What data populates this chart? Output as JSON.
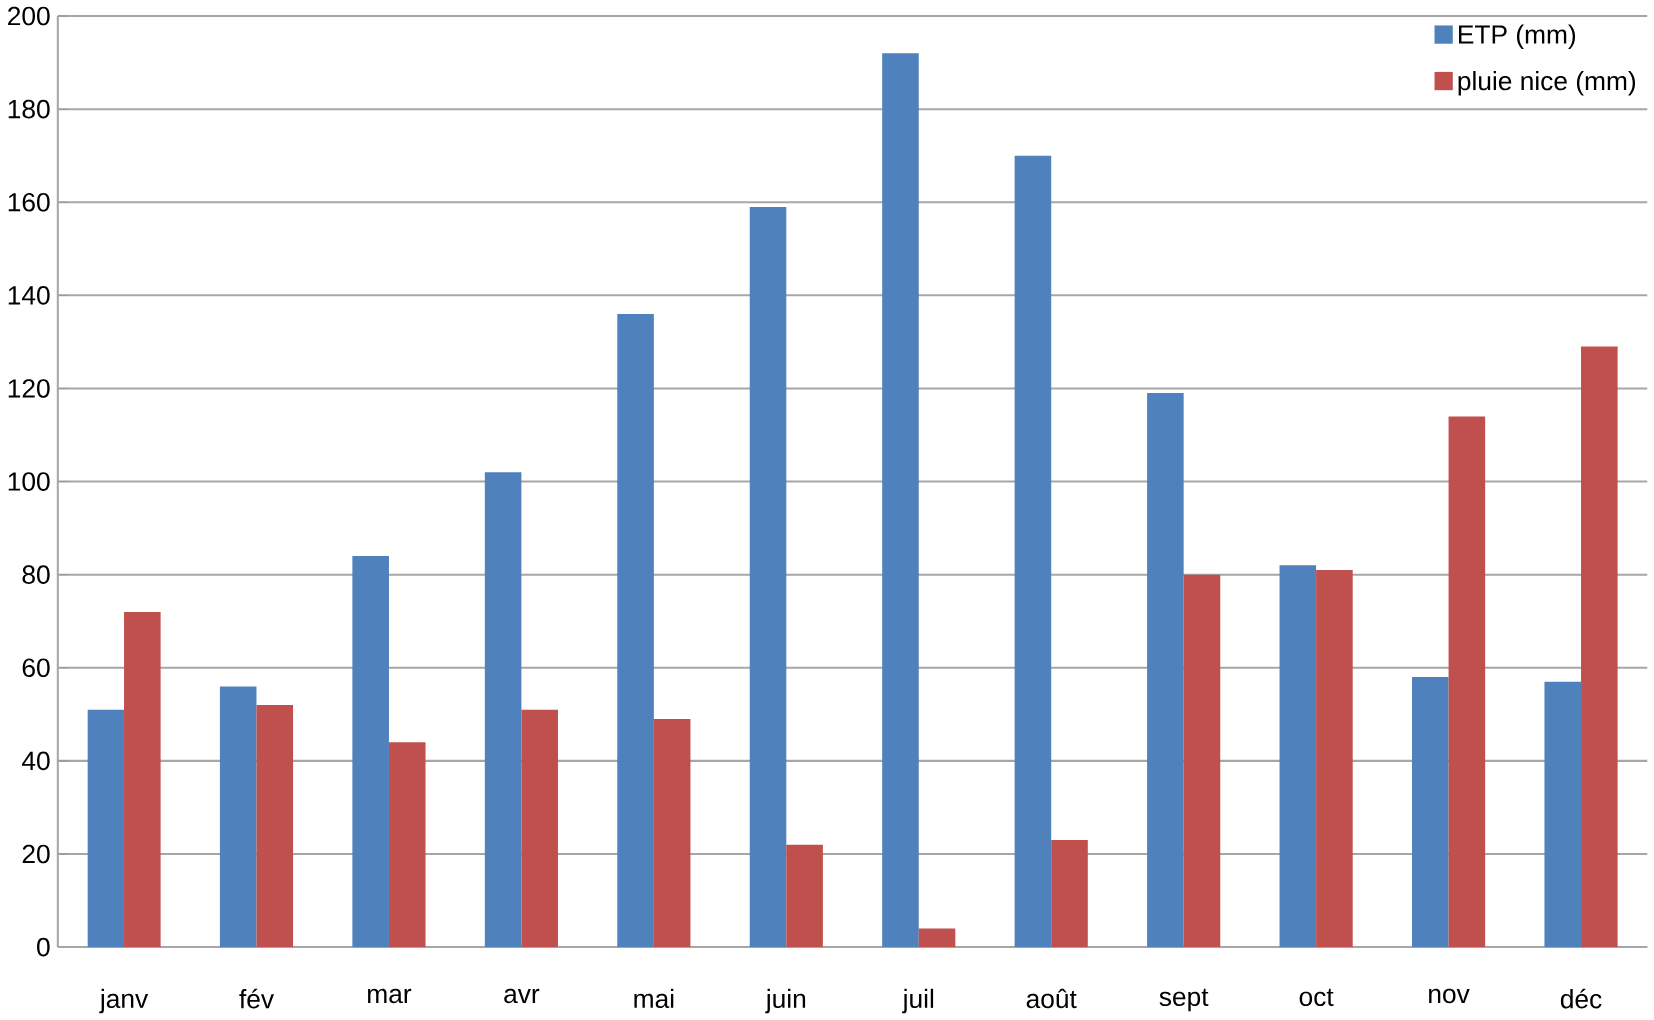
{
  "chart_data": {
    "type": "bar",
    "categories": [
      "janv",
      "fév",
      "mar",
      "avr",
      "mai",
      "juin",
      "juil",
      "août",
      "sept",
      "oct",
      "nov",
      "déc"
    ],
    "series": [
      {
        "name": "ETP (mm)",
        "color": "#4f81bd",
        "values": [
          51,
          56,
          84,
          102,
          136,
          159,
          192,
          170,
          119,
          82,
          58,
          57
        ]
      },
      {
        "name": "pluie nice (mm)",
        "color": "#c0504d",
        "values": [
          72,
          52,
          44,
          51,
          49,
          22,
          4,
          23,
          80,
          81,
          114,
          129
        ]
      }
    ],
    "ylim": [
      0,
      200
    ],
    "yticks": [
      0,
      20,
      40,
      60,
      80,
      100,
      120,
      140,
      160,
      180,
      200
    ],
    "grid": "y",
    "legend": "top right"
  }
}
